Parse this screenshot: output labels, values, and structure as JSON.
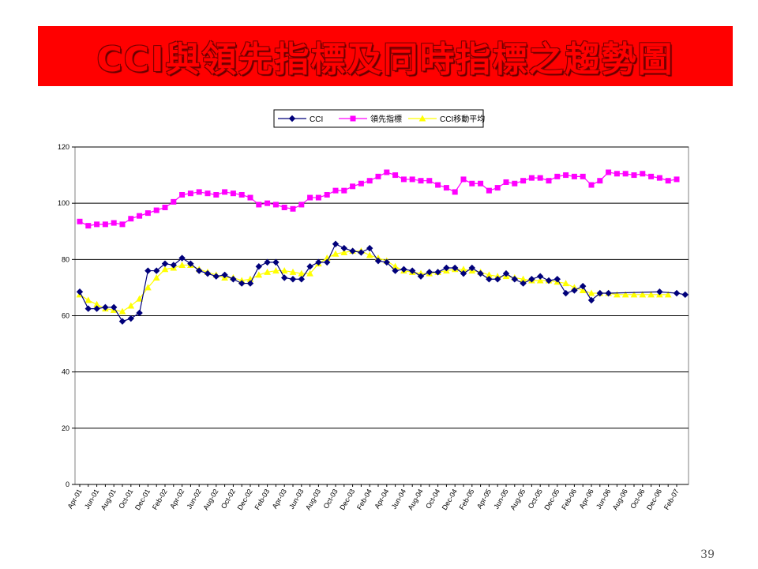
{
  "title": "CCI與領先指標及同時指標之趨勢圖",
  "page_number": "39",
  "colors": {
    "banner": "#ff0000",
    "cci": "#00007a",
    "leading": "#ff00ff",
    "moving_average": "#ffff00"
  },
  "chart_data": {
    "type": "line",
    "title": "",
    "xlabel": "",
    "ylabel": "",
    "ylim": [
      0,
      120
    ],
    "yticks": [
      0,
      20,
      40,
      60,
      80,
      100,
      120
    ],
    "grid": "horizontal",
    "legend_position": "top-center",
    "x_start": "Apr-01",
    "x_tick_labels": [
      "Apr-01",
      "Jun-01",
      "Aug-01",
      "Oct-01",
      "Dec-01",
      "Feb-02",
      "Apr-02",
      "Jun-02",
      "Aug-02",
      "Oct-02",
      "Dec-02",
      "Feb-03",
      "Apr-03",
      "Jun-03",
      "Aug-03",
      "Oct-03",
      "Dec-03",
      "Feb-04",
      "Apr-04",
      "Jun-04",
      "Aug-04",
      "Oct-04",
      "Dec-04",
      "Feb-05",
      "Apr-05",
      "Jun-05",
      "Aug-05",
      "Oct-05",
      "Dec-05",
      "Feb-06",
      "Apr-06",
      "Jun-06",
      "Aug-06",
      "Oct-06",
      "Dec-06",
      "Feb-07"
    ],
    "series": [
      {
        "name": "CCI",
        "color": "#00007a",
        "marker": "diamond",
        "values": [
          68.5,
          62.5,
          62.5,
          63,
          63,
          58,
          59,
          61,
          76,
          76,
          78.5,
          78,
          80.5,
          78.5,
          76,
          75,
          74,
          74.5,
          73,
          71.5,
          71.5,
          77.5,
          79,
          79,
          73.5,
          73,
          73,
          77.5,
          79,
          79,
          85.5,
          84,
          83,
          82.5,
          84,
          79.5,
          79,
          76,
          76.5,
          76,
          74,
          75.5,
          75.5,
          77,
          77,
          75,
          77,
          75,
          73,
          73,
          75,
          73,
          71.5,
          73,
          74,
          72.5,
          73,
          68,
          69,
          70.5,
          65.5,
          68,
          68,
          null,
          null,
          null,
          null,
          null,
          68.5,
          null,
          68,
          67.5
        ]
      },
      {
        "name": "領先指標",
        "color": "#ff00ff",
        "marker": "square",
        "values": [
          93.5,
          92,
          92.5,
          92.5,
          93,
          92.5,
          94.5,
          95.5,
          96.5,
          97.5,
          98.5,
          100.5,
          103,
          103.5,
          104,
          103.5,
          103,
          104,
          103.5,
          103,
          102,
          99.5,
          100,
          99.5,
          98.5,
          98,
          99.5,
          102,
          102,
          103,
          104.5,
          104.5,
          106,
          107,
          108,
          109.5,
          111,
          110,
          108.5,
          108.5,
          108,
          108,
          106.5,
          105.5,
          104,
          108.5,
          107,
          107,
          104.5,
          105.5,
          107.5,
          107,
          108,
          109,
          109,
          108,
          109.5,
          110,
          109.5,
          109.5,
          106.5,
          108,
          111,
          110.5,
          110.5,
          110,
          110.5,
          109.5,
          109,
          108,
          108.5
        ]
      },
      {
        "name": "CCI移動平均",
        "color": "#ffff00",
        "marker": "triangle",
        "values": [
          67.5,
          65.5,
          64,
          62.5,
          62,
          61.5,
          63.5,
          66,
          70,
          73.5,
          76.5,
          77,
          78,
          78,
          76.5,
          75.5,
          74.5,
          73.5,
          73.5,
          72.5,
          73,
          74.5,
          75.5,
          76,
          76,
          75.5,
          75,
          75,
          78.5,
          80.5,
          82,
          82.5,
          83,
          83,
          81.5,
          80.5,
          79.5,
          77.5,
          76,
          75.5,
          75,
          75,
          75.5,
          76,
          76.5,
          76.5,
          76,
          75.5,
          74.5,
          74,
          74,
          73.5,
          73,
          72.5,
          72.5,
          72.5,
          72,
          71.5,
          70,
          69,
          68,
          68,
          68,
          67.5,
          67.5,
          67.5,
          67.5,
          67.5,
          67.5,
          67.5
        ]
      }
    ]
  }
}
